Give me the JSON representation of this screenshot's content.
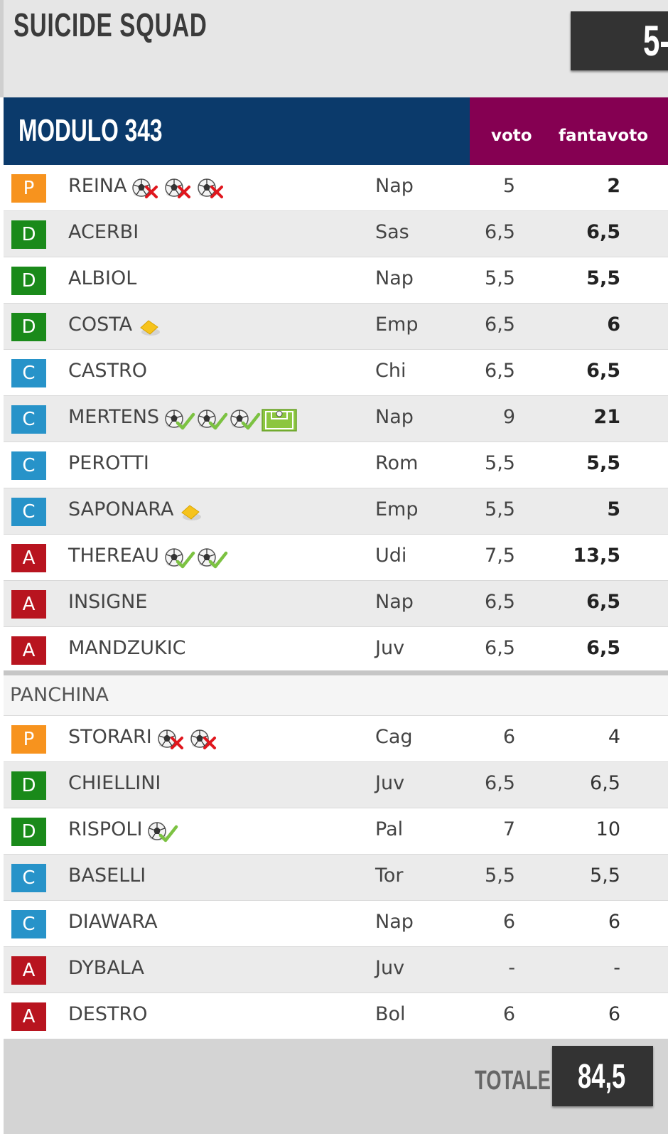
{
  "team": {
    "name": "SUICIDE SQUAD",
    "score": "5-"
  },
  "lineup": {
    "modulo": "MODULO 343",
    "col_voto": "voto",
    "col_fantavoto": "fantavoto",
    "starters": [
      {
        "role": "P",
        "name": "REINA",
        "icons": [
          "goal-conceded-icon",
          "goal-conceded-icon",
          "goal-conceded-icon"
        ],
        "team": "Nap",
        "voto": "5",
        "fantavoto": "2"
      },
      {
        "role": "D",
        "name": "ACERBI",
        "icons": [],
        "team": "Sas",
        "voto": "6,5",
        "fantavoto": "6,5"
      },
      {
        "role": "D",
        "name": "ALBIOL",
        "icons": [],
        "team": "Nap",
        "voto": "5,5",
        "fantavoto": "5,5"
      },
      {
        "role": "D",
        "name": "COSTA",
        "icons": [
          "yellow-card-icon"
        ],
        "team": "Emp",
        "voto": "6,5",
        "fantavoto": "6"
      },
      {
        "role": "C",
        "name": "CASTRO",
        "icons": [],
        "team": "Chi",
        "voto": "6,5",
        "fantavoto": "6,5"
      },
      {
        "role": "C",
        "name": "MERTENS",
        "icons": [
          "goal-scored-icon",
          "goal-scored-icon",
          "goal-scored-icon",
          "assist-icon"
        ],
        "team": "Nap",
        "voto": "9",
        "fantavoto": "21"
      },
      {
        "role": "C",
        "name": "PEROTTI",
        "icons": [],
        "team": "Rom",
        "voto": "5,5",
        "fantavoto": "5,5"
      },
      {
        "role": "C",
        "name": "SAPONARA",
        "icons": [
          "yellow-card-icon"
        ],
        "team": "Emp",
        "voto": "5,5",
        "fantavoto": "5"
      },
      {
        "role": "A",
        "name": "THEREAU",
        "icons": [
          "goal-scored-icon",
          "goal-scored-icon"
        ],
        "team": "Udi",
        "voto": "7,5",
        "fantavoto": "13,5"
      },
      {
        "role": "A",
        "name": "INSIGNE",
        "icons": [],
        "team": "Nap",
        "voto": "6,5",
        "fantavoto": "6,5"
      },
      {
        "role": "A",
        "name": "MANDZUKIC",
        "icons": [],
        "team": "Juv",
        "voto": "6,5",
        "fantavoto": "6,5"
      }
    ],
    "bench_label": "PANCHINA",
    "bench": [
      {
        "role": "P",
        "name": "STORARI",
        "icons": [
          "goal-conceded-icon",
          "goal-conceded-icon"
        ],
        "team": "Cag",
        "voto": "6",
        "fantavoto": "4"
      },
      {
        "role": "D",
        "name": "CHIELLINI",
        "icons": [],
        "team": "Juv",
        "voto": "6,5",
        "fantavoto": "6,5"
      },
      {
        "role": "D",
        "name": "RISPOLI",
        "icons": [
          "goal-scored-icon"
        ],
        "team": "Pal",
        "voto": "7",
        "fantavoto": "10"
      },
      {
        "role": "C",
        "name": "BASELLI",
        "icons": [],
        "team": "Tor",
        "voto": "5,5",
        "fantavoto": "5,5"
      },
      {
        "role": "C",
        "name": "DIAWARA",
        "icons": [],
        "team": "Nap",
        "voto": "6",
        "fantavoto": "6"
      },
      {
        "role": "A",
        "name": "DYBALA",
        "icons": [],
        "team": "Juv",
        "voto": "-",
        "fantavoto": "-"
      },
      {
        "role": "A",
        "name": "DESTRO",
        "icons": [],
        "team": "Bol",
        "voto": "6",
        "fantavoto": "6"
      }
    ]
  },
  "footer": {
    "totale_label": "TOTALE",
    "totale_value": "84,5"
  },
  "colors": {
    "header_blue": "#0b3a6b",
    "header_purple": "#850052",
    "role_P": "#f7931e",
    "role_D": "#1a8a1a",
    "role_C": "#2793c9",
    "role_A": "#b8141f"
  }
}
